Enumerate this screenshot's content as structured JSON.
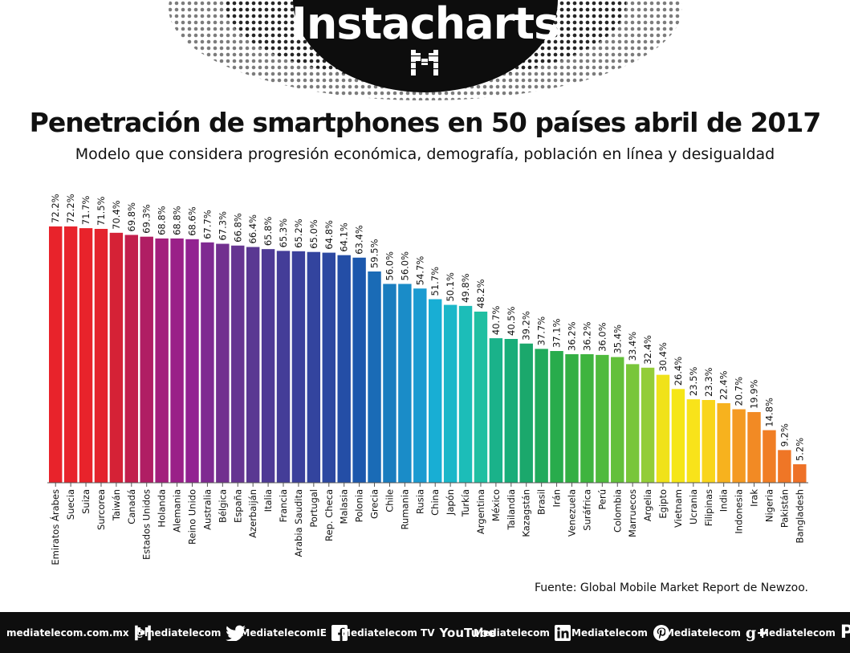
{
  "header": {
    "brand": "Instacharts",
    "title": "Penetración de smartphones en 50 países abril de 2017",
    "subtitle": "Modelo que considera progresión económica, demografía, población en línea y desigualdad"
  },
  "chart_data": {
    "type": "bar",
    "title": "Penetración de smartphones en 50 países abril de 2017",
    "subtitle": "Modelo que considera progresión económica, demografía, población en línea y desigualdad",
    "unit": "%",
    "ylim": [
      0,
      100
    ],
    "grid": false,
    "categories": [
      "Emiratos Árabes",
      "Suecia",
      "Suiza",
      "Surcorea",
      "Taiwán",
      "Canadá",
      "Estados Unidos",
      "Holanda",
      "Alemania",
      "Reino Unido",
      "Australia",
      "Bélgica",
      "España",
      "Azerbaiján",
      "Italia",
      "Francia",
      "Arabia Saudita",
      "Portugal",
      "Rep. Checa",
      "Malasia",
      "Polonia",
      "Grecia",
      "Chile",
      "Rumania",
      "Rusia",
      "China",
      "Japón",
      "Turkía",
      "Argentina",
      "México",
      "Tailandia",
      "Kazagstán",
      "Brasil",
      "Irán",
      "Venezuela",
      "Suráfrica",
      "Perú",
      "Colombia",
      "Marruecos",
      "Argelia",
      "Egipto",
      "Vietnam",
      "Ucrania",
      "Filipinas",
      "India",
      "Indonesia",
      "Irak",
      "Nigeria",
      "Pakistán",
      "Bangladesh"
    ],
    "values": [
      72.2,
      72.2,
      71.7,
      71.5,
      70.4,
      69.8,
      69.3,
      68.8,
      68.8,
      68.6,
      67.7,
      67.3,
      66.8,
      66.4,
      65.8,
      65.3,
      65.2,
      65.0,
      64.8,
      64.1,
      63.4,
      59.5,
      56.0,
      56.0,
      54.7,
      51.7,
      50.1,
      49.8,
      48.2,
      40.7,
      40.5,
      39.2,
      37.7,
      37.1,
      36.2,
      36.2,
      36.0,
      35.4,
      33.4,
      32.4,
      30.4,
      26.4,
      23.5,
      23.3,
      22.4,
      20.7,
      19.9,
      14.8,
      9.2,
      5.2
    ],
    "labels": [
      "72.2%",
      "72.2%",
      "71.7%",
      "71.5%",
      "70.4%",
      "69.8%",
      "69.3%",
      "68.8%",
      "68.8%",
      "68.6%",
      "67.7%",
      "67.3%",
      "66.8%",
      "66.4%",
      "65.8%",
      "65.3%",
      "65.2%",
      "65.0%",
      "64.8%",
      "64.1%",
      "63.4%",
      "59.5%",
      "56.0%",
      "56.0%",
      "54.7%",
      "51.7%",
      "50.1%",
      "49.8%",
      "48.2%",
      "40.7%",
      "40.5%",
      "39.2%",
      "37.7%",
      "37.1%",
      "36.2%",
      "36.2%",
      "36.0%",
      "35.4%",
      "33.4%",
      "32.4%",
      "30.4%",
      "26.4%",
      "23.5%",
      "23.3%",
      "22.4%",
      "20.7%",
      "19.9%",
      "14.8%",
      "9.2%",
      "5.2%"
    ],
    "colors": [
      "#e8232b",
      "#e8232b",
      "#e8232b",
      "#e4232d",
      "#d52236",
      "#c21f4c",
      "#b01e64",
      "#a31f7c",
      "#9a2088",
      "#922291",
      "#7f2a91",
      "#72308f",
      "#663591",
      "#5a3892",
      "#4e3a95",
      "#443d98",
      "#3b409b",
      "#33449e",
      "#2c48a1",
      "#244ea6",
      "#1c58ad",
      "#1a6bb6",
      "#1a7dbf",
      "#1a8cc8",
      "#1a9bd1",
      "#18aed4",
      "#1ab7c9",
      "#1cbdb8",
      "#1fbfa2",
      "#1ab28a",
      "#18ad79",
      "#1ba86c",
      "#20aa5c",
      "#28ac4c",
      "#33af44",
      "#3fb43f",
      "#4fba3d",
      "#63c03b",
      "#79c63a",
      "#93cd38",
      "#f0e21a",
      "#f5e617",
      "#f8e31a",
      "#f9d51c",
      "#f7b21e",
      "#f49a22",
      "#f28a24",
      "#f07e25",
      "#ef7626",
      "#ee7127"
    ],
    "source": "Fuente: Global Mobile Market Report de Newzoo."
  },
  "footer": {
    "items": [
      {
        "label": "mediatelecom.com.mx",
        "icon": "m-logo-icon"
      },
      {
        "label": "@mediatelecom",
        "icon": "twitter-icon"
      },
      {
        "label": "/MediatelecomIE",
        "icon": "facebook-icon"
      },
      {
        "label": "Mediatelecom TV",
        "icon": "youtube-icon"
      },
      {
        "label": "Mediatelecom",
        "icon": "linkedin-icon"
      },
      {
        "label": "Mediatelecom",
        "icon": "pinterest-icon"
      },
      {
        "label": "Mediatelecom",
        "icon": "googleplus-icon"
      },
      {
        "label": "Mediatelecom",
        "icon": "periscope-icon"
      }
    ],
    "youtube_word": "YouTube",
    "googleplus_mark": "g+",
    "periscope_mark": "P"
  }
}
